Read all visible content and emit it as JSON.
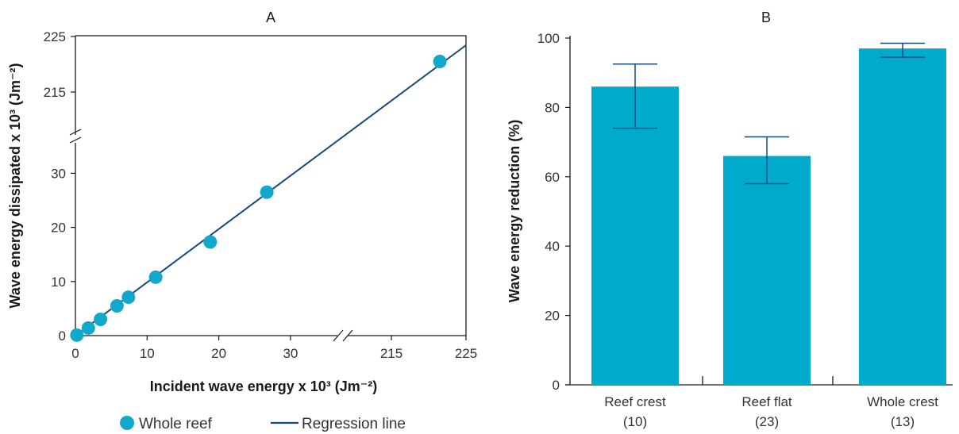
{
  "chart_data": [
    {
      "type": "scatter",
      "title": "A",
      "xlabel": "Incident wave energy x 10³ (Jm⁻²)",
      "ylabel": "Wave energy dissipated x 10³ (Jm⁻²)",
      "x_ticks": [
        0,
        10,
        20,
        30,
        215,
        225
      ],
      "y_ticks": [
        0,
        10,
        20,
        30,
        215,
        225
      ],
      "x_axis_break": [
        35,
        210
      ],
      "y_axis_break": [
        35,
        210
      ],
      "xlim": [
        0,
        225
      ],
      "ylim": [
        0,
        225
      ],
      "series": [
        {
          "name": "Whole reef",
          "marker": "circle",
          "color": "#12a8cc",
          "x": [
            0.2,
            1.8,
            3.5,
            5.8,
            7.4,
            11.2,
            18.8,
            26.7,
            221.5
          ],
          "y": [
            0.1,
            1.4,
            3.0,
            5.5,
            7.1,
            10.8,
            17.3,
            26.5,
            220.5
          ]
        },
        {
          "name": "Regression line",
          "type": "line",
          "color": "#17497e",
          "x": [
            0,
            225
          ],
          "y": [
            0,
            223.6
          ]
        }
      ],
      "legend": [
        "Whole reef",
        "Regression line"
      ],
      "legend_position": "bottom"
    },
    {
      "type": "bar",
      "title": "B",
      "xlabel": "",
      "ylabel": "Wave energy reduction (%)",
      "categories": [
        "Reef crest",
        "Reef flat",
        "Whole crest"
      ],
      "category_counts": [
        "(10)",
        "(23)",
        "(13)"
      ],
      "values": [
        86,
        66,
        97
      ],
      "error_low": [
        74,
        58,
        94.5
      ],
      "error_high": [
        92.5,
        71.5,
        98.5
      ],
      "y_ticks": [
        0,
        20,
        40,
        60,
        80,
        100
      ],
      "ylim": [
        0,
        100
      ],
      "bar_color": "#00aacc",
      "error_color": "#17497e"
    }
  ]
}
